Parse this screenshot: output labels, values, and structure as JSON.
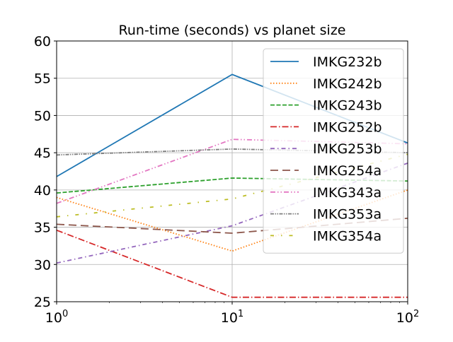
{
  "colors": {
    "background": "#ffffff",
    "grid": "#b0b0b0",
    "axis": "#000000",
    "legend_border": "#cccccc"
  },
  "chart_data": {
    "type": "line",
    "title": "Run-time (seconds) vs planet size",
    "xlabel": "",
    "ylabel": "",
    "xscale": "log",
    "x": [
      1,
      10,
      100
    ],
    "xlim": [
      1,
      100
    ],
    "ylim": [
      25,
      60
    ],
    "grid": true,
    "legend_position": "top-right",
    "x_ticks": [
      {
        "value": 1,
        "base": "10",
        "exp": "0"
      },
      {
        "value": 10,
        "base": "10",
        "exp": "1"
      },
      {
        "value": 100,
        "base": "10",
        "exp": "2"
      }
    ],
    "y_ticks": [
      25,
      30,
      35,
      40,
      45,
      50,
      55,
      60
    ],
    "series": [
      {
        "name": "IMKG232b",
        "values": [
          41.8,
          55.5,
          46.3
        ],
        "color": "#1f77b4",
        "style": "solid"
      },
      {
        "name": "IMKG242b",
        "values": [
          39.0,
          31.8,
          40.0
        ],
        "color": "#ff7f0e",
        "style": "dotted"
      },
      {
        "name": "IMKG243b",
        "values": [
          39.6,
          41.6,
          41.2
        ],
        "color": "#2ca02c",
        "style": "dashed"
      },
      {
        "name": "IMKG252b",
        "values": [
          34.6,
          25.6,
          25.6
        ],
        "color": "#d62728",
        "style": "dashdot"
      },
      {
        "name": "IMKG253b",
        "values": [
          30.2,
          35.2,
          43.6
        ],
        "color": "#9467bd",
        "style": "dashdotted"
      },
      {
        "name": "IMKG254a",
        "values": [
          35.4,
          34.2,
          36.2
        ],
        "color": "#8c564b",
        "style": "longdash"
      },
      {
        "name": "IMKG343a",
        "values": [
          38.2,
          46.8,
          46.2
        ],
        "color": "#e377c2",
        "style": "dashdotdot"
      },
      {
        "name": "IMKG353a",
        "values": [
          44.7,
          45.5,
          45.0
        ],
        "color": "#7f7f7f",
        "style": "densedashdotdot"
      },
      {
        "name": "IMKG354a",
        "values": [
          36.4,
          38.8,
          44.8
        ],
        "color": "#bcbd22",
        "style": "loosedashdot"
      }
    ]
  }
}
